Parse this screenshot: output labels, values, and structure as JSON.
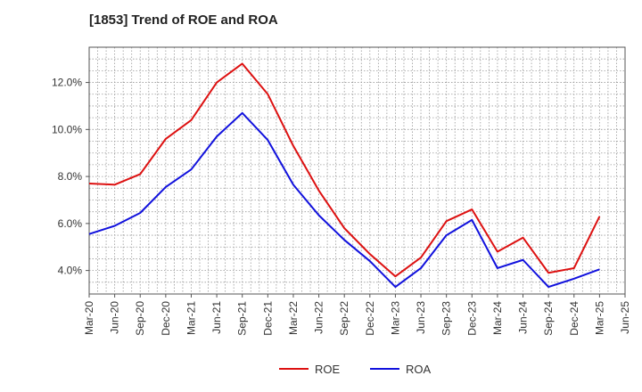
{
  "chart_data": {
    "type": "line",
    "title": "[1853]  Trend of ROE and ROA",
    "xlabel": "",
    "ylabel": "",
    "x_ticks": [
      "Mar-20",
      "Jun-20",
      "Sep-20",
      "Dec-20",
      "Mar-21",
      "Jun-21",
      "Sep-21",
      "Dec-21",
      "Mar-22",
      "Jun-22",
      "Sep-22",
      "Dec-22",
      "Mar-23",
      "Jun-23",
      "Sep-23",
      "Dec-23",
      "Mar-24",
      "Jun-24",
      "Sep-24",
      "Dec-24",
      "Mar-25",
      "Jun-25"
    ],
    "x": [
      "Mar-20",
      "Jun-20",
      "Sep-20",
      "Dec-20",
      "Mar-21",
      "Jun-21",
      "Sep-21",
      "Dec-21",
      "Mar-22",
      "Jun-22",
      "Sep-22",
      "Dec-22",
      "Mar-23",
      "Jun-23",
      "Sep-23",
      "Dec-23",
      "Mar-24",
      "Jun-24",
      "Sep-24",
      "Dec-24",
      "Mar-25"
    ],
    "ylim": [
      3.0,
      13.5
    ],
    "y_ticks": [
      4.0,
      6.0,
      8.0,
      10.0,
      12.0
    ],
    "y_tick_labels": [
      "4.0%",
      "6.0%",
      "8.0%",
      "10.0%",
      "12.0%"
    ],
    "grid": true,
    "legend_position": "bottom-center",
    "series": [
      {
        "name": "ROE",
        "color": "#dd1111",
        "values": [
          7.7,
          7.65,
          8.1,
          9.6,
          10.4,
          12.0,
          12.8,
          11.5,
          9.3,
          7.4,
          5.8,
          4.7,
          3.75,
          4.55,
          6.1,
          6.6,
          4.8,
          5.4,
          3.9,
          4.1,
          6.3
        ]
      },
      {
        "name": "ROA",
        "color": "#1111dd",
        "values": [
          5.55,
          5.9,
          6.45,
          7.55,
          8.3,
          9.7,
          10.7,
          9.55,
          7.65,
          6.35,
          5.3,
          4.4,
          3.3,
          4.1,
          5.5,
          6.15,
          4.1,
          4.45,
          3.3,
          3.65,
          4.05
        ]
      }
    ]
  }
}
